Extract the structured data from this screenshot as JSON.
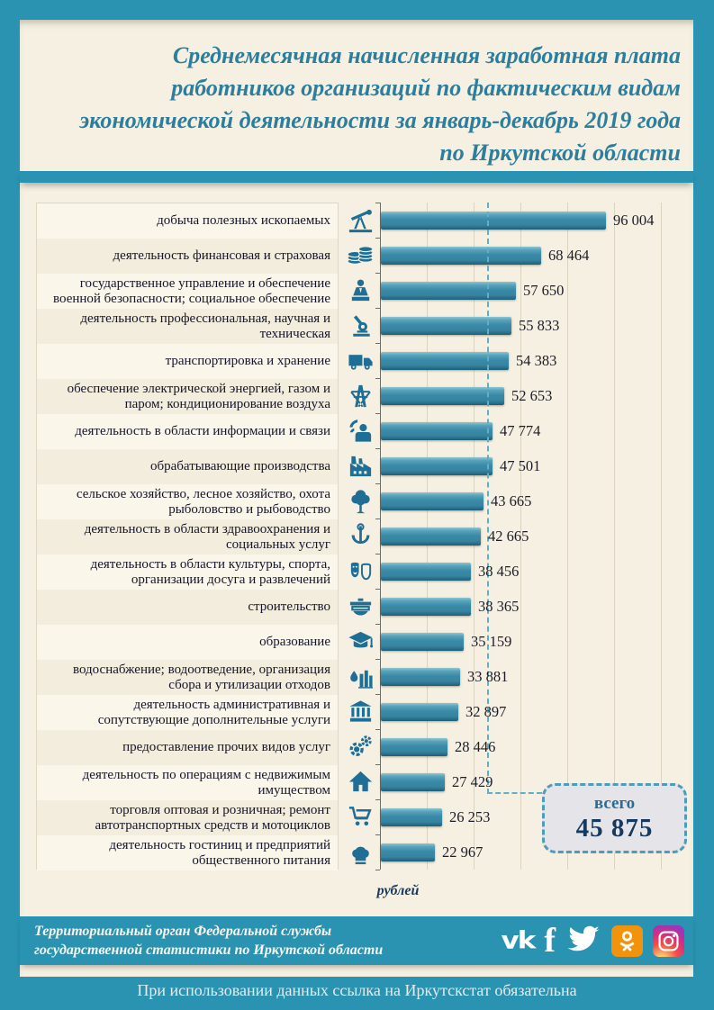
{
  "page": {
    "title_lines": [
      "Среднемесячная начисленная заработная плата",
      "работников организаций по фактическим видам",
      "экономической деятельности за январь-декабрь 2019 года",
      "по Иркутской области"
    ]
  },
  "chart_data": {
    "type": "bar",
    "orientation": "horizontal",
    "title": "Среднемесячная начисленная заработная плата работников организаций по фактическим видам экономической деятельности за январь-декабрь 2019 года по Иркутской области",
    "unit_label": "рублей",
    "xlim": [
      0,
      132000
    ],
    "grid_step": 20000,
    "grid_on": true,
    "average_line": {
      "label": "всего",
      "value": 45875,
      "value_label": "45 875"
    },
    "rows": [
      {
        "label": "добыча полезных ископаемых",
        "value": 96004,
        "value_label": "96 004",
        "icon": "mining-pumpjack-icon"
      },
      {
        "label": "деятельность финансовая и страховая",
        "value": 68464,
        "value_label": "68 464",
        "icon": "finance-coins-icon"
      },
      {
        "label": "государственное управление и обеспечение военной безопасности; социальное обеспечение",
        "value": 57650,
        "value_label": "57 650",
        "icon": "government-tribune-icon"
      },
      {
        "label": "деятельность профессиональная, научная и техническая",
        "value": 55833,
        "value_label": "55 833",
        "icon": "science-microscope-icon"
      },
      {
        "label": "транспортировка и хранение",
        "value": 54383,
        "value_label": "54 383",
        "icon": "transport-truck-icon"
      },
      {
        "label": "обеспечение электрической энергией, газом и паром; кондиционирование воздуха",
        "value": 52653,
        "value_label": "52 653",
        "icon": "energy-pylon-icon"
      },
      {
        "label": "деятельность в области информации и связи",
        "value": 47774,
        "value_label": "47 774",
        "icon": "information-communication-icon"
      },
      {
        "label": "обрабатывающие производства",
        "value": 47501,
        "value_label": "47 501",
        "icon": "manufacturing-factory-icon"
      },
      {
        "label": "сельское хозяйство, лесное хозяйство, охота рыболовство и рыбоводство",
        "value": 43665,
        "value_label": "43 665",
        "icon": "agriculture-tree-icon"
      },
      {
        "label": "деятельность в области здравоохранения и социальных услуг",
        "value": 42665,
        "value_label": "42 665",
        "icon": "healthcare-bowl-icon"
      },
      {
        "label": "деятельность в области культуры, спорта, организации досуга и развлечений",
        "value": 38456,
        "value_label": "38 456",
        "icon": "culture-masks-icon"
      },
      {
        "label": "строительство",
        "value": 38365,
        "value_label": "38 365",
        "icon": "construction-trowel-icon"
      },
      {
        "label": "образование",
        "value": 35159,
        "value_label": "35 159",
        "icon": "education-cap-icon"
      },
      {
        "label": "водоснабжение; водоотведение, организация сбора и утилизации отходов",
        "value": 33881,
        "value_label": "33 881",
        "icon": "water-utility-icon"
      },
      {
        "label": "деятельность административная и сопутствующие дополнительные услуги",
        "value": 32897,
        "value_label": "32 897",
        "icon": "administrative-bank-icon"
      },
      {
        "label": "предоставление прочих видов услуг",
        "value": 28446,
        "value_label": "28 446",
        "icon": "other-services-gears-icon"
      },
      {
        "label": "деятельность по операциям с недвижимым имуществом",
        "value": 27429,
        "value_label": "27 429",
        "icon": "real-estate-house-icon"
      },
      {
        "label": "торговля оптовая и розничная; ремонт автотранспортных средств и мотоциклов",
        "value": 26253,
        "value_label": "26 253",
        "icon": "trade-cart-icon"
      },
      {
        "label": "деятельность гостиниц и предприятий общественного питания",
        "value": 22967,
        "value_label": "22 967",
        "icon": "hotels-catering-icon"
      }
    ],
    "colors": {
      "bar": "#3a8aa7",
      "accent": "#2a93b1",
      "background": "#f5f0e1",
      "dashed_line": "#5fb0c6",
      "icon": "#1e6e96"
    }
  },
  "footer": {
    "org_lines": [
      "Территориальный орган Федеральной службы",
      "государственной статистики по Иркутской области"
    ],
    "social": [
      {
        "name": "vk",
        "label": "vk"
      },
      {
        "name": "facebook",
        "label": "f"
      },
      {
        "name": "twitter",
        "label": "twitter"
      },
      {
        "name": "odnoklassniki",
        "label": "ok"
      },
      {
        "name": "instagram",
        "label": "instagram"
      }
    ]
  },
  "bottom_note": "При использовании данных ссылка на Иркутскстат обязательна"
}
